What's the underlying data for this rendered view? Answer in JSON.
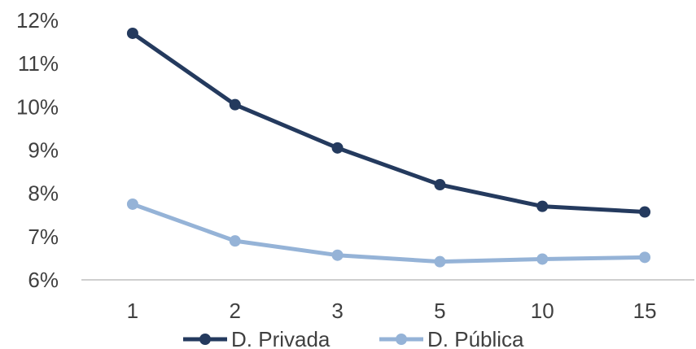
{
  "chart_data": {
    "type": "line",
    "categories": [
      "1",
      "2",
      "3",
      "5",
      "10",
      "15"
    ],
    "series": [
      {
        "name": "D. Privada",
        "color": "#243a5e",
        "values": [
          11.7,
          10.05,
          9.05,
          8.2,
          7.7,
          7.57
        ]
      },
      {
        "name": "D. Pública",
        "color": "#95b3d7",
        "values": [
          7.75,
          6.9,
          6.57,
          6.42,
          6.48,
          6.52
        ]
      }
    ],
    "y_ticks": [
      "6%",
      "7%",
      "8%",
      "9%",
      "10%",
      "11%",
      "12%"
    ],
    "ylim": [
      6,
      12
    ],
    "grid": false,
    "legend": "bottom"
  }
}
